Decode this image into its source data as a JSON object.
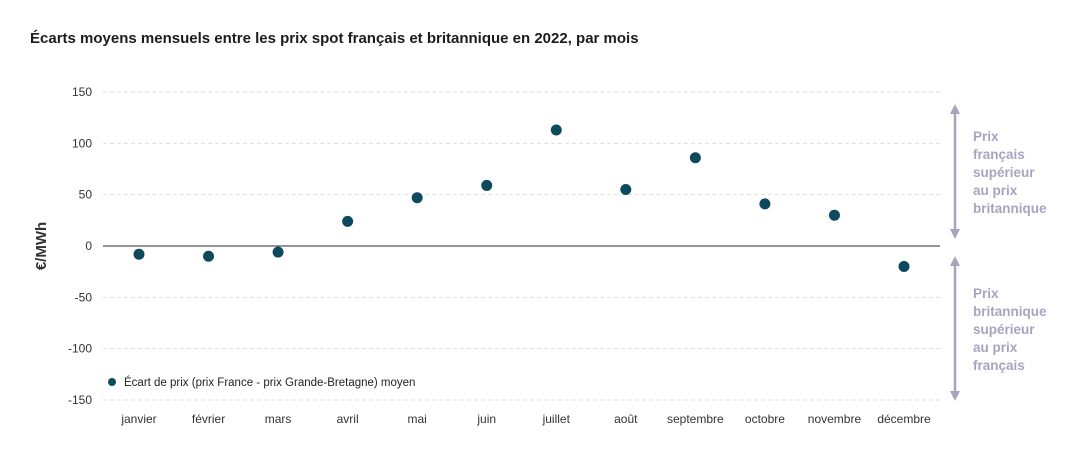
{
  "title": "Écarts moyens mensuels entre les prix spot français et britannique en 2022, par mois",
  "chart_data": {
    "type": "scatter",
    "title": "Écarts moyens mensuels entre les prix spot français et britannique en 2022, par mois",
    "xlabel": "",
    "ylabel": "€/MWh",
    "ylim": [
      -150,
      150
    ],
    "yticks": [
      150,
      100,
      50,
      0,
      -50,
      -100,
      -150
    ],
    "grid": true,
    "legend_position": "bottom-left",
    "categories": [
      "janvier",
      "février",
      "mars",
      "avril",
      "mai",
      "juin",
      "juillet",
      "août",
      "septembre",
      "octobre",
      "novembre",
      "décembre"
    ],
    "series": [
      {
        "name": "Écart de prix (prix France - prix Grande-Bretagne) moyen",
        "color": "#0d4a5e",
        "values": [
          -8,
          -10,
          -6,
          24,
          47,
          59,
          113,
          55,
          86,
          41,
          30,
          -20
        ]
      }
    ],
    "annotations": [
      {
        "lines": [
          "Prix",
          "français",
          "supérieur",
          "au prix",
          "britannique"
        ],
        "direction": "up"
      },
      {
        "lines": [
          "Prix",
          "britannique",
          "supérieur",
          "au prix",
          "français"
        ],
        "direction": "down"
      }
    ],
    "annotation_color": "#a8a4bd"
  }
}
